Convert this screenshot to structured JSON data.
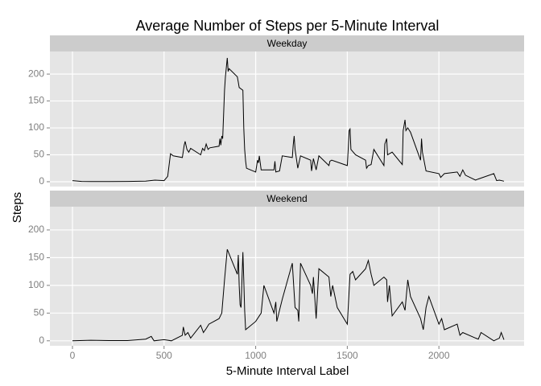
{
  "chart_data": {
    "type": "line",
    "title": "Average Number of Steps per 5-Minute Interval",
    "xlabel": "5-Minute Interval Label",
    "ylabel": "Steps",
    "color": "#000000",
    "grid": true,
    "xlim": [
      -123,
      2465
    ],
    "xticks": [
      0,
      500,
      1000,
      1500,
      2000
    ],
    "ylim": [
      -9,
      242
    ],
    "yticks": [
      0,
      50,
      100,
      150,
      200
    ],
    "facets": [
      {
        "name": "Weekday",
        "x": [
          0,
          50,
          100,
          200,
          300,
          400,
          450,
          500,
          520,
          535,
          550,
          600,
          610,
          615,
          625,
          635,
          645,
          700,
          710,
          720,
          730,
          740,
          750,
          800,
          805,
          810,
          815,
          820,
          830,
          835,
          845,
          850,
          855,
          900,
          905,
          910,
          930,
          935,
          940,
          945,
          950,
          1000,
          1010,
          1015,
          1020,
          1030,
          1100,
          1105,
          1110,
          1130,
          1145,
          1200,
          1205,
          1210,
          1215,
          1230,
          1245,
          1300,
          1305,
          1315,
          1330,
          1345,
          1400,
          1405,
          1415,
          1500,
          1505,
          1510,
          1515,
          1520,
          1545,
          1600,
          1605,
          1615,
          1630,
          1645,
          1700,
          1705,
          1715,
          1720,
          1745,
          1800,
          1805,
          1815,
          1820,
          1830,
          1845,
          1900,
          1905,
          1910,
          1930,
          2000,
          2010,
          2030,
          2100,
          2115,
          2130,
          2145,
          2200,
          2215,
          2300,
          2315,
          2330,
          2355
        ],
        "values": [
          2,
          0.5,
          0.4,
          0.2,
          0.5,
          1,
          3,
          2,
          10,
          52,
          48,
          45,
          68,
          75,
          60,
          55,
          62,
          50,
          62,
          58,
          70,
          60,
          63,
          66,
          80,
          68,
          85,
          80,
          170,
          195,
          230,
          205,
          210,
          195,
          185,
          175,
          170,
          100,
          60,
          38,
          25,
          18,
          40,
          35,
          48,
          22,
          22,
          38,
          18,
          20,
          48,
          45,
          68,
          85,
          60,
          25,
          48,
          40,
          20,
          43,
          22,
          48,
          30,
          38,
          40,
          30,
          60,
          95,
          98,
          60,
          50,
          40,
          25,
          30,
          32,
          60,
          30,
          70,
          80,
          50,
          55,
          32,
          95,
          115,
          95,
          100,
          92,
          40,
          80,
          55,
          20,
          15,
          8,
          15,
          18,
          10,
          22,
          12,
          3,
          5,
          15,
          2,
          3,
          1
        ]
      },
      {
        "name": "Weekend",
        "x": [
          0,
          100,
          200,
          300,
          400,
          430,
          445,
          500,
          540,
          600,
          605,
          615,
          630,
          645,
          700,
          715,
          730,
          745,
          800,
          815,
          830,
          845,
          900,
          905,
          910,
          915,
          920,
          930,
          935,
          940,
          945,
          1000,
          1030,
          1045,
          1100,
          1110,
          1115,
          1145,
          1200,
          1215,
          1230,
          1235,
          1245,
          1300,
          1310,
          1315,
          1330,
          1345,
          1400,
          1410,
          1420,
          1445,
          1500,
          1515,
          1530,
          1545,
          1600,
          1615,
          1630,
          1645,
          1700,
          1715,
          1720,
          1730,
          1745,
          1800,
          1815,
          1830,
          1845,
          1900,
          1915,
          1930,
          1945,
          2000,
          2015,
          2030,
          2100,
          2115,
          2130,
          2200,
          2215,
          2230,
          2300,
          2330,
          2340,
          2355
        ],
        "values": [
          0.2,
          1,
          0.5,
          0.5,
          3,
          8,
          0,
          2,
          0,
          10,
          25,
          10,
          15,
          5,
          28,
          15,
          22,
          30,
          40,
          50,
          110,
          165,
          120,
          155,
          100,
          65,
          60,
          160,
          110,
          55,
          20,
          35,
          50,
          100,
          50,
          70,
          35,
          75,
          140,
          60,
          55,
          35,
          140,
          100,
          85,
          115,
          40,
          130,
          115,
          80,
          100,
          60,
          30,
          120,
          125,
          110,
          130,
          145,
          120,
          100,
          115,
          110,
          70,
          100,
          45,
          70,
          55,
          110,
          80,
          40,
          20,
          60,
          80,
          30,
          40,
          20,
          30,
          10,
          15,
          5,
          3,
          15,
          0,
          5,
          15,
          2
        ]
      }
    ]
  }
}
